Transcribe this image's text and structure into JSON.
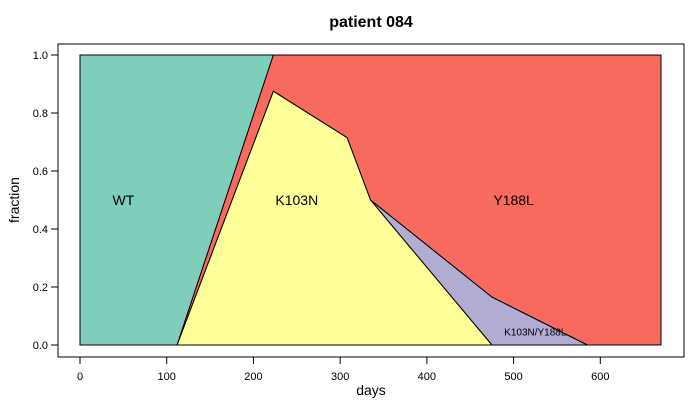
{
  "chart_data": {
    "type": "area",
    "title": "patient 084",
    "xlabel": "days",
    "ylabel": "fraction",
    "xlim": [
      0,
      670
    ],
    "ylim": [
      0,
      1
    ],
    "xticks": [
      0,
      100,
      200,
      300,
      400,
      500,
      600
    ],
    "yticks": [
      0.0,
      0.2,
      0.4,
      0.6,
      0.8,
      1.0
    ],
    "ytick_labels": [
      "0.0",
      "0.2",
      "0.4",
      "0.6",
      "0.8",
      "1.0"
    ],
    "grid": false,
    "regions": [
      {
        "name": "WT",
        "label": "WT",
        "color": "#7fcdbb",
        "label_at": [
          50,
          0.5
        ],
        "points": [
          [
            0,
            0
          ],
          [
            0,
            1
          ],
          [
            223,
            1
          ],
          [
            112,
            0
          ]
        ]
      },
      {
        "name": "Y188L",
        "label": "Y188L",
        "color": "#f8695e",
        "label_at": [
          500,
          0.5
        ],
        "points": [
          [
            223,
            1
          ],
          [
            670,
            1
          ],
          [
            670,
            0
          ],
          [
            585,
            0
          ],
          [
            475,
            0.165
          ],
          [
            335,
            0.5
          ],
          [
            308,
            0.715
          ],
          [
            223,
            0.875
          ],
          [
            112,
            0
          ]
        ]
      },
      {
        "name": "K103N/Y188L",
        "label": "K103N/Y188L",
        "color": "#b2abd2",
        "label_at": [
          525,
          0.05
        ],
        "points": [
          [
            335,
            0.5
          ],
          [
            475,
            0.165
          ],
          [
            585,
            0
          ],
          [
            475,
            0
          ]
        ]
      },
      {
        "name": "K103N",
        "label": "K103N",
        "color": "#ffff99",
        "label_at": [
          250,
          0.5
        ],
        "points": [
          [
            112,
            0
          ],
          [
            223,
            0.875
          ],
          [
            308,
            0.715
          ],
          [
            335,
            0.5
          ],
          [
            475,
            0
          ]
        ]
      }
    ]
  }
}
